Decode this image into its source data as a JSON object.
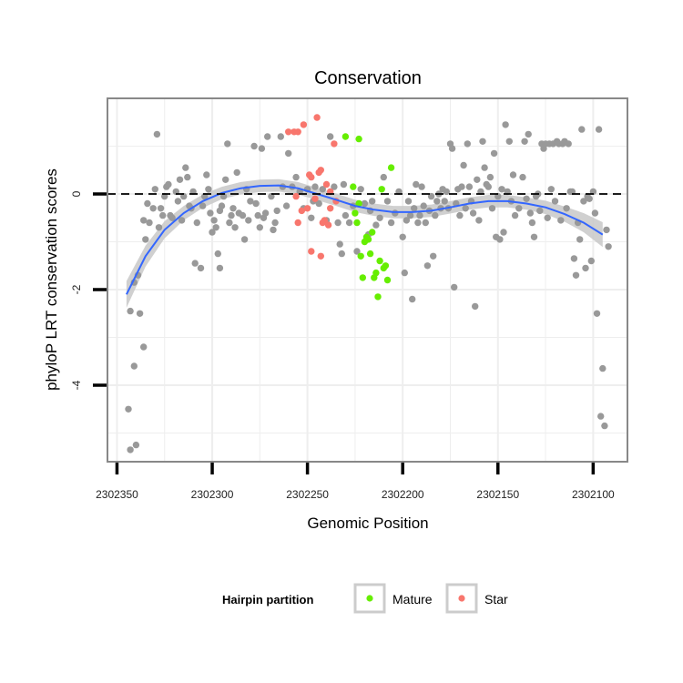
{
  "chart_data": {
    "type": "scatter",
    "title": "Conservation",
    "xlabel": "Genomic Position",
    "ylabel": "phyloP LRT conservation scores",
    "x_reversed": true,
    "xlim": [
      2302355,
      2302082
    ],
    "ylim": [
      -5.6,
      2.0
    ],
    "x_ticks": [
      2302350,
      2302300,
      2302250,
      2302200,
      2302150,
      2302100
    ],
    "x_tick_labels": [
      "2302350",
      "2302300",
      "2302250",
      "2302200",
      "2302150",
      "2302100"
    ],
    "y_ticks": [
      -4,
      -2,
      0
    ],
    "y_tick_labels": [
      "-4",
      "-2",
      "0"
    ],
    "grid": true,
    "reference_line": {
      "y": 0,
      "style": "dashed",
      "color": "#000000"
    },
    "colors": {
      "background": "#ffffff",
      "frame": "#888888",
      "grid": "#eeeeee",
      "other": "#999999",
      "mature": "#66ee00",
      "star": "#f8766d",
      "smooth_line": "#3366ff",
      "smooth_band": "#c8c8c8"
    },
    "legend": {
      "title": "Hairpin partition",
      "position": "bottom",
      "items": [
        {
          "label": "Mature",
          "color": "#66ee00"
        },
        {
          "label": "Star",
          "color": "#f8766d"
        }
      ]
    },
    "series": [
      {
        "key": "other",
        "color": "#999999",
        "points": [
          [
            2302344,
            -4.5
          ],
          [
            2302343,
            -5.35
          ],
          [
            2302341,
            -3.6
          ],
          [
            2302340,
            -5.25
          ],
          [
            2302343,
            -2.45
          ],
          [
            2302341,
            -1.85
          ],
          [
            2302339,
            -1.7
          ],
          [
            2302338,
            -2.5
          ],
          [
            2302336,
            -3.2
          ],
          [
            2302336,
            -0.55
          ],
          [
            2302335,
            -0.95
          ],
          [
            2302334,
            -0.2
          ],
          [
            2302333,
            -0.6
          ],
          [
            2302331,
            -0.3
          ],
          [
            2302330,
            0.1
          ],
          [
            2302329,
            1.25
          ],
          [
            2302328,
            -0.7
          ],
          [
            2302327,
            -0.3
          ],
          [
            2302326,
            -0.45
          ],
          [
            2302325,
            -0.05
          ],
          [
            2302324,
            0.15
          ],
          [
            2302323,
            0.2
          ],
          [
            2302322,
            -0.45
          ],
          [
            2302321,
            -0.5
          ],
          [
            2302319,
            0.05
          ],
          [
            2302318,
            -0.15
          ],
          [
            2302317,
            0.3
          ],
          [
            2302316,
            -0.55
          ],
          [
            2302315,
            -0.05
          ],
          [
            2302314,
            0.55
          ],
          [
            2302313,
            0.35
          ],
          [
            2302312,
            -0.25
          ],
          [
            2302311,
            -0.3
          ],
          [
            2302310,
            0.05
          ],
          [
            2302309,
            -1.45
          ],
          [
            2302308,
            -0.6
          ],
          [
            2302306,
            -1.55
          ],
          [
            2302305,
            -0.25
          ],
          [
            2302304,
            -0.05
          ],
          [
            2302303,
            0.4
          ],
          [
            2302302,
            0.1
          ],
          [
            2302301,
            -0.4
          ],
          [
            2302300,
            -0.8
          ],
          [
            2302299,
            -0.55
          ],
          [
            2302298,
            -0.7
          ],
          [
            2302297,
            -1.25
          ],
          [
            2302296,
            -1.55
          ],
          [
            2302296,
            -0.35
          ],
          [
            2302295,
            -0.25
          ],
          [
            2302294,
            -0.05
          ],
          [
            2302293,
            0.3
          ],
          [
            2302292,
            1.05
          ],
          [
            2302291,
            -0.6
          ],
          [
            2302290,
            -0.45
          ],
          [
            2302289,
            -0.3
          ],
          [
            2302288,
            -0.7
          ],
          [
            2302287,
            0.45
          ],
          [
            2302286,
            -0.4
          ],
          [
            2302284,
            -0.45
          ],
          [
            2302283,
            -0.95
          ],
          [
            2302282,
            0.1
          ],
          [
            2302281,
            -0.55
          ],
          [
            2302280,
            -0.15
          ],
          [
            2302278,
            1.0
          ],
          [
            2302277,
            -0.2
          ],
          [
            2302276,
            -0.45
          ],
          [
            2302275,
            -0.7
          ],
          [
            2302274,
            0.95
          ],
          [
            2302273,
            -0.5
          ],
          [
            2302272,
            -0.4
          ],
          [
            2302271,
            1.2
          ],
          [
            2302269,
            -0.05
          ],
          [
            2302268,
            -0.75
          ],
          [
            2302267,
            -0.6
          ],
          [
            2302266,
            -0.35
          ],
          [
            2302264,
            1.2
          ],
          [
            2302263,
            0.15
          ],
          [
            2302261,
            -0.25
          ],
          [
            2302260,
            0.85
          ],
          [
            2302258,
            0.15
          ],
          [
            2302256,
            0.35
          ],
          [
            2302254,
            0.05
          ],
          [
            2302252,
            -0.3
          ],
          [
            2302250,
            0.1
          ],
          [
            2302248,
            -0.5
          ],
          [
            2302247,
            -0.15
          ],
          [
            2302246,
            0.15
          ],
          [
            2302244,
            -0.2
          ],
          [
            2302242,
            0.1
          ],
          [
            2302240,
            -0.55
          ],
          [
            2302238,
            1.2
          ],
          [
            2302236,
            0.15
          ],
          [
            2302234,
            -0.6
          ],
          [
            2302233,
            -1.05
          ],
          [
            2302232,
            -1.25
          ],
          [
            2302231,
            0.2
          ],
          [
            2302230,
            -0.45
          ],
          [
            2302228,
            -0.6
          ],
          [
            2302226,
            -0.25
          ],
          [
            2302224,
            -1.2
          ],
          [
            2302222,
            0.1
          ],
          [
            2302220,
            -0.2
          ],
          [
            2302218,
            -0.85
          ],
          [
            2302217,
            -0.35
          ],
          [
            2302216,
            -0.15
          ],
          [
            2302214,
            -0.65
          ],
          [
            2302212,
            -0.5
          ],
          [
            2302210,
            0.35
          ],
          [
            2302208,
            -0.15
          ],
          [
            2302206,
            -0.6
          ],
          [
            2302204,
            -0.4
          ],
          [
            2302202,
            0.05
          ],
          [
            2302200,
            -0.9
          ],
          [
            2302199,
            -1.65
          ],
          [
            2302198,
            -0.55
          ],
          [
            2302197,
            -0.15
          ],
          [
            2302196,
            -0.45
          ],
          [
            2302195,
            -2.2
          ],
          [
            2302194,
            -0.3
          ],
          [
            2302193,
            0.2
          ],
          [
            2302192,
            -0.6
          ],
          [
            2302191,
            -0.45
          ],
          [
            2302190,
            0.15
          ],
          [
            2302189,
            -0.25
          ],
          [
            2302188,
            -0.6
          ],
          [
            2302187,
            -1.5
          ],
          [
            2302186,
            -0.35
          ],
          [
            2302185,
            -0.05
          ],
          [
            2302184,
            -1.3
          ],
          [
            2302183,
            -0.45
          ],
          [
            2302182,
            -0.15
          ],
          [
            2302181,
            0.0
          ],
          [
            2302180,
            -0.3
          ],
          [
            2302179,
            0.1
          ],
          [
            2302178,
            -0.15
          ],
          [
            2302177,
            0.05
          ],
          [
            2302176,
            -0.3
          ],
          [
            2302175,
            1.05
          ],
          [
            2302174,
            0.95
          ],
          [
            2302173,
            -1.95
          ],
          [
            2302172,
            -0.2
          ],
          [
            2302171,
            0.1
          ],
          [
            2302170,
            -0.45
          ],
          [
            2302169,
            0.15
          ],
          [
            2302168,
            0.6
          ],
          [
            2302167,
            -0.3
          ],
          [
            2302166,
            1.05
          ],
          [
            2302165,
            0.15
          ],
          [
            2302164,
            -0.15
          ],
          [
            2302163,
            -0.4
          ],
          [
            2302162,
            -2.35
          ],
          [
            2302161,
            0.3
          ],
          [
            2302160,
            -0.55
          ],
          [
            2302159,
            0.05
          ],
          [
            2302158,
            1.1
          ],
          [
            2302157,
            0.55
          ],
          [
            2302156,
            0.2
          ],
          [
            2302155,
            0.15
          ],
          [
            2302154,
            0.35
          ],
          [
            2302153,
            -0.3
          ],
          [
            2302152,
            0.85
          ],
          [
            2302151,
            -0.9
          ],
          [
            2302150,
            -0.05
          ],
          [
            2302149,
            -0.95
          ],
          [
            2302148,
            0.1
          ],
          [
            2302147,
            -0.8
          ],
          [
            2302146,
            1.45
          ],
          [
            2302145,
            0.05
          ],
          [
            2302144,
            1.1
          ],
          [
            2302143,
            -0.15
          ],
          [
            2302142,
            0.4
          ],
          [
            2302141,
            -0.45
          ],
          [
            2302139,
            -0.3
          ],
          [
            2302137,
            0.35
          ],
          [
            2302136,
            1.1
          ],
          [
            2302135,
            -0.1
          ],
          [
            2302134,
            1.25
          ],
          [
            2302133,
            -0.4
          ],
          [
            2302132,
            -0.6
          ],
          [
            2302131,
            -0.9
          ],
          [
            2302130,
            -0.05
          ],
          [
            2302129,
            0.0
          ],
          [
            2302128,
            -0.35
          ],
          [
            2302127,
            1.05
          ],
          [
            2302126,
            0.95
          ],
          [
            2302125,
            1.05
          ],
          [
            2302124,
            -0.5
          ],
          [
            2302123,
            1.05
          ],
          [
            2302122,
            0.1
          ],
          [
            2302121,
            1.05
          ],
          [
            2302120,
            -0.15
          ],
          [
            2302119,
            1.1
          ],
          [
            2302118,
            1.05
          ],
          [
            2302117,
            -0.55
          ],
          [
            2302116,
            1.05
          ],
          [
            2302115,
            1.1
          ],
          [
            2302114,
            -0.3
          ],
          [
            2302113,
            1.05
          ],
          [
            2302112,
            0.05
          ],
          [
            2302111,
            0.05
          ],
          [
            2302110,
            -1.35
          ],
          [
            2302109,
            -1.7
          ],
          [
            2302108,
            -0.6
          ],
          [
            2302107,
            -0.95
          ],
          [
            2302106,
            1.35
          ],
          [
            2302105,
            -0.15
          ],
          [
            2302104,
            -1.55
          ],
          [
            2302103,
            -0.05
          ],
          [
            2302102,
            -0.1
          ],
          [
            2302101,
            -1.4
          ],
          [
            2302100,
            0.05
          ],
          [
            2302099,
            -0.4
          ],
          [
            2302098,
            -2.5
          ],
          [
            2302097,
            1.35
          ],
          [
            2302096,
            -4.65
          ],
          [
            2302095,
            -3.65
          ],
          [
            2302094,
            -4.85
          ],
          [
            2302093,
            -0.75
          ],
          [
            2302092,
            -1.1
          ]
        ]
      },
      {
        "key": "mature",
        "color": "#66ee00",
        "points": [
          [
            2302230,
            1.2
          ],
          [
            2302223,
            1.15
          ],
          [
            2302226,
            0.15
          ],
          [
            2302225,
            -0.4
          ],
          [
            2302224,
            -0.6
          ],
          [
            2302223,
            -0.2
          ],
          [
            2302221,
            -1.75
          ],
          [
            2302219,
            -0.9
          ],
          [
            2302218,
            -0.95
          ],
          [
            2302217,
            -1.25
          ],
          [
            2302216,
            -0.8
          ],
          [
            2302215,
            -1.75
          ],
          [
            2302214,
            -1.65
          ],
          [
            2302213,
            -2.15
          ],
          [
            2302211,
            0.1
          ],
          [
            2302210,
            -1.55
          ],
          [
            2302209,
            -1.5
          ],
          [
            2302208,
            -1.8
          ],
          [
            2302206,
            0.55
          ],
          [
            2302222,
            -1.3
          ],
          [
            2302220,
            -1.0
          ],
          [
            2302212,
            -1.4
          ]
        ]
      },
      {
        "key": "star",
        "color": "#f8766d",
        "points": [
          [
            2302257,
            1.3
          ],
          [
            2302255,
            1.3
          ],
          [
            2302260,
            1.3
          ],
          [
            2302252,
            1.45
          ],
          [
            2302245,
            1.6
          ],
          [
            2302236,
            1.05
          ],
          [
            2302248,
            0.35
          ],
          [
            2302249,
            0.4
          ],
          [
            2302244,
            0.45
          ],
          [
            2302243,
            0.5
          ],
          [
            2302240,
            0.2
          ],
          [
            2302238,
            0.05
          ],
          [
            2302256,
            -0.05
          ],
          [
            2302253,
            -0.35
          ],
          [
            2302250,
            -0.3
          ],
          [
            2302246,
            -0.1
          ],
          [
            2302238,
            -0.3
          ],
          [
            2302241,
            -0.55
          ],
          [
            2302235,
            -0.15
          ],
          [
            2302242,
            -0.6
          ],
          [
            2302239,
            -0.65
          ],
          [
            2302255,
            -0.6
          ],
          [
            2302248,
            -1.2
          ],
          [
            2302243,
            -1.3
          ]
        ]
      }
    ],
    "smooth": {
      "color": "#3366ff",
      "x": [
        2302345,
        2302335,
        2302325,
        2302315,
        2302305,
        2302295,
        2302285,
        2302275,
        2302265,
        2302255,
        2302245,
        2302235,
        2302225,
        2302215,
        2302205,
        2302195,
        2302185,
        2302175,
        2302165,
        2302155,
        2302145,
        2302135,
        2302125,
        2302115,
        2302105,
        2302095
      ],
      "y": [
        -2.1,
        -1.3,
        -0.75,
        -0.4,
        -0.15,
        0.02,
        0.12,
        0.17,
        0.18,
        0.12,
        0.0,
        -0.12,
        -0.25,
        -0.33,
        -0.38,
        -0.38,
        -0.35,
        -0.28,
        -0.2,
        -0.15,
        -0.15,
        -0.2,
        -0.28,
        -0.42,
        -0.6,
        -0.85
      ],
      "se": [
        0.28,
        0.22,
        0.18,
        0.15,
        0.14,
        0.13,
        0.13,
        0.13,
        0.13,
        0.13,
        0.13,
        0.13,
        0.13,
        0.13,
        0.13,
        0.13,
        0.13,
        0.13,
        0.13,
        0.13,
        0.13,
        0.13,
        0.14,
        0.16,
        0.2,
        0.26
      ]
    }
  }
}
